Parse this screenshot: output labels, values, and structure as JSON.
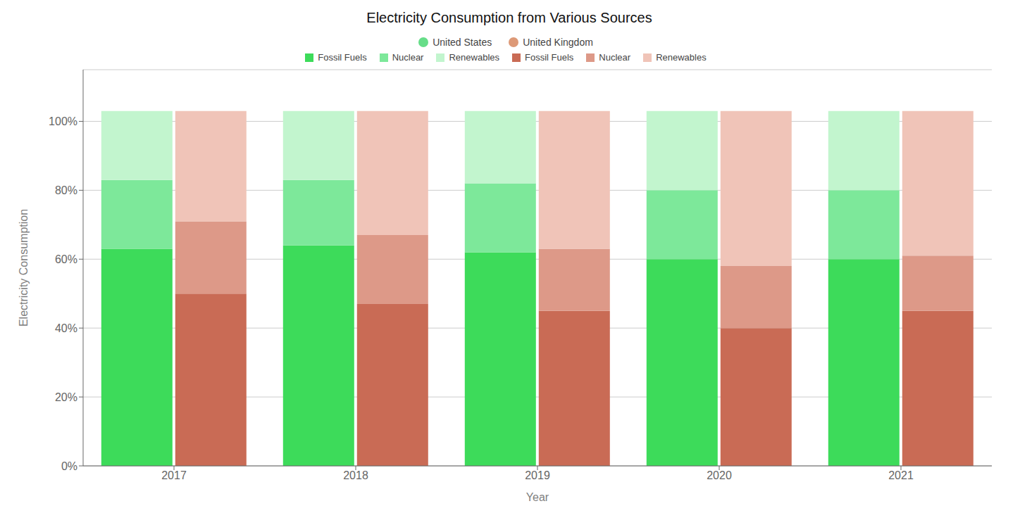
{
  "chart_data": {
    "type": "bar",
    "title": "Electricity Consumption from Various Sources",
    "x_label": "Year",
    "y_label": "Electricity Consumption",
    "categories": [
      2017,
      2018,
      2019,
      2020,
      2021
    ],
    "stacked": true,
    "grid": true,
    "legend": "top",
    "groups": [
      {
        "name": "United States",
        "color": "#66DD88",
        "series": [
          {
            "name": "Fossil Fuels",
            "color": "#3DDB5A",
            "values": [
              63,
              64,
              62,
              60,
              60
            ]
          },
          {
            "name": "Nuclear",
            "color": "#7DE89A",
            "values": [
              20,
              19,
              20,
              20,
              20
            ]
          },
          {
            "name": "Renewables",
            "color": "#C2F5CE",
            "values": [
              20,
              20,
              21,
              23,
              23
            ]
          }
        ]
      },
      {
        "name": "United Kingdom",
        "color": "#DD9977",
        "series": [
          {
            "name": "Fossil Fuels",
            "color": "#C96B55",
            "values": [
              50,
              47,
              45,
              40,
              45
            ]
          },
          {
            "name": "Nuclear",
            "color": "#DD9988",
            "values": [
              21,
              20,
              18,
              18,
              16
            ]
          },
          {
            "name": "Renewables",
            "color": "#F0C4B8",
            "values": [
              32,
              36,
              40,
              45,
              42
            ]
          }
        ]
      }
    ],
    "ylim": [
      0,
      115
    ],
    "yticks": [
      {
        "value": 0,
        "label": "0%"
      },
      {
        "value": 20,
        "label": "20%"
      },
      {
        "value": 40,
        "label": "40%"
      },
      {
        "value": 60,
        "label": "60%"
      },
      {
        "value": 80,
        "label": "80%"
      },
      {
        "value": 100,
        "label": "100%"
      }
    ]
  }
}
